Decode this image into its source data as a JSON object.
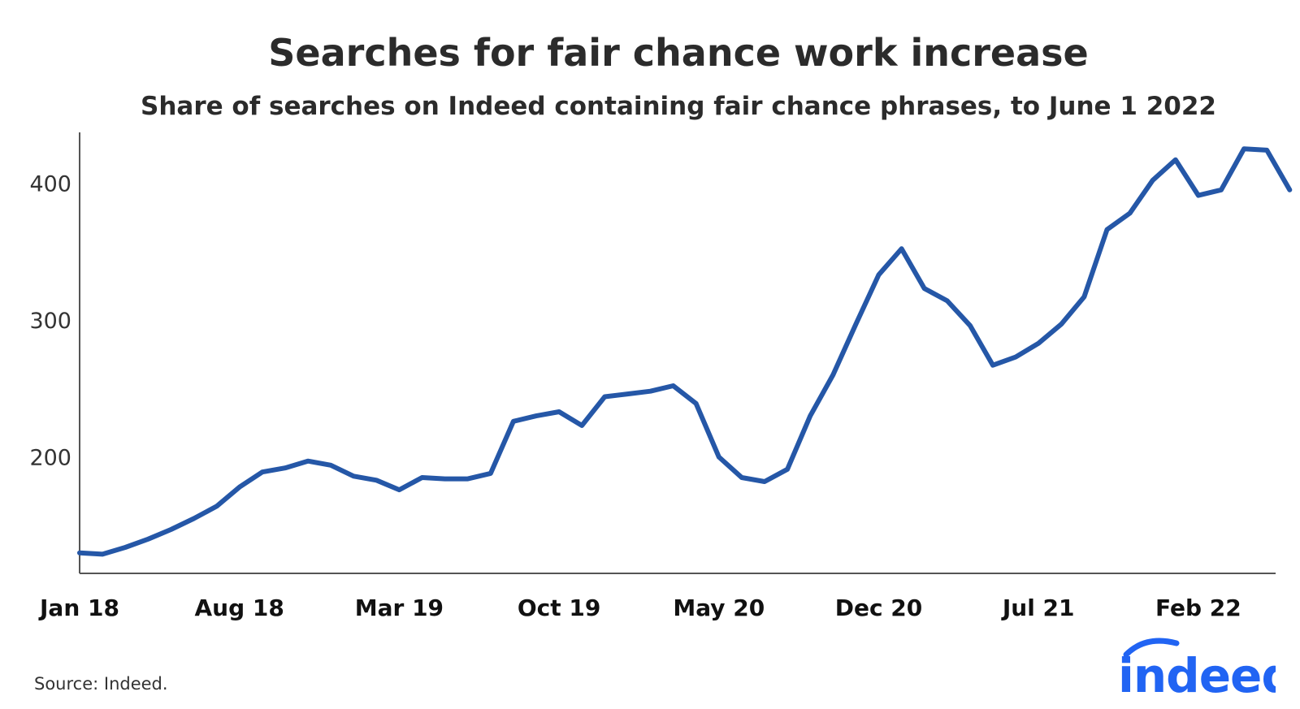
{
  "title": "Searches for fair chance work increase",
  "subtitle": "Share of searches on Indeed containing fair chance phrases, to June 1 2022",
  "source": "Source: Indeed.",
  "logo_text": "indeed",
  "colors": {
    "line": "#2557a7",
    "axis": "#555555",
    "logo": "#2164f3"
  },
  "chart_data": {
    "type": "line",
    "title": "Searches for fair chance work increase",
    "subtitle": "Share of searches on Indeed containing fair chance phrases, to June 1 2022",
    "xlabel": "",
    "ylabel": "",
    "ylim": [
      115,
      437
    ],
    "y_ticks": [
      200,
      300,
      400
    ],
    "x_tick_labels": [
      "Jan 18",
      "Aug 18",
      "Mar 19",
      "Oct 19",
      "May 20",
      "Dec 20",
      "Jul 21",
      "Feb 22"
    ],
    "x_tick_indices": [
      0,
      7,
      14,
      21,
      28,
      35,
      42,
      49
    ],
    "grid": false,
    "legend": "none",
    "series": [
      {
        "x": [
          "2018-01",
          "2018-02",
          "2018-03",
          "2018-04",
          "2018-05",
          "2018-06",
          "2018-07",
          "2018-08",
          "2018-09",
          "2018-10",
          "2018-11",
          "2018-12",
          "2019-01",
          "2019-02",
          "2019-03",
          "2019-04",
          "2019-05",
          "2019-06",
          "2019-07",
          "2019-08",
          "2019-09",
          "2019-10",
          "2019-11",
          "2019-12",
          "2020-01",
          "2020-02",
          "2020-03",
          "2020-04",
          "2020-05",
          "2020-06",
          "2020-07",
          "2020-08",
          "2020-09",
          "2020-10",
          "2020-11",
          "2020-12",
          "2021-01",
          "2021-02",
          "2021-03",
          "2021-04",
          "2021-05",
          "2021-06",
          "2021-07",
          "2021-08",
          "2021-09",
          "2021-10",
          "2021-11",
          "2021-12",
          "2022-01",
          "2022-02",
          "2022-03",
          "2022-04",
          "2022-05",
          "2022-06"
        ],
        "values": [
          130,
          129,
          134,
          140,
          147,
          155,
          164,
          178,
          189,
          192,
          197,
          194,
          186,
          183,
          176,
          185,
          184,
          184,
          188,
          226,
          230,
          233,
          223,
          244,
          246,
          248,
          252,
          239,
          200,
          185,
          182,
          191,
          230,
          260,
          297,
          333,
          352,
          323,
          314,
          296,
          267,
          273,
          283,
          297,
          317,
          366,
          378,
          402,
          417,
          391,
          395,
          425,
          424,
          395
        ]
      }
    ]
  }
}
